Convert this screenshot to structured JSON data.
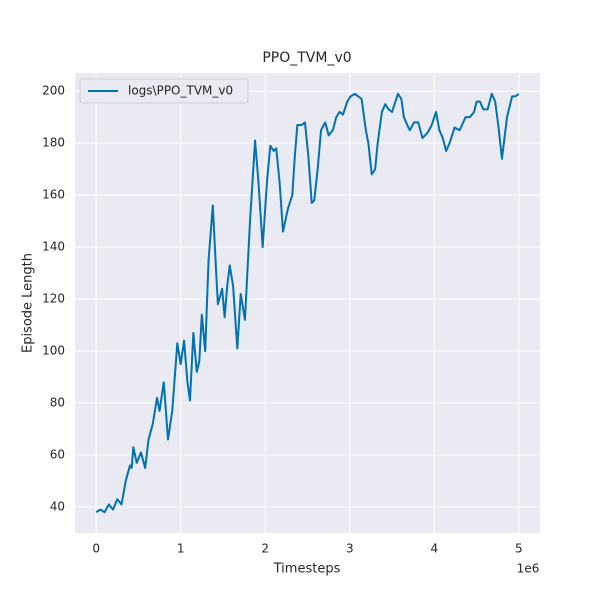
{
  "chart_data": {
    "type": "line",
    "title": "PPO_TVM_v0",
    "x_label": "Timesteps",
    "y_label": "Episode Length",
    "x_offset_label": "1e6",
    "xlim": [
      -0.25,
      5.25
    ],
    "xticks": [
      0,
      1,
      2,
      3,
      4,
      5
    ],
    "ylim": [
      30,
      207
    ],
    "yticks": [
      40,
      60,
      80,
      100,
      120,
      140,
      160,
      180,
      200
    ],
    "grid": true,
    "legend": "upper left",
    "x": [
      0,
      0.05,
      0.1,
      0.15,
      0.2,
      0.25,
      0.3,
      0.35,
      0.4,
      0.42,
      0.44,
      0.48,
      0.53,
      0.58,
      0.62,
      0.67,
      0.72,
      0.75,
      0.8,
      0.85,
      0.9,
      0.96,
      1.0,
      1.04,
      1.08,
      1.11,
      1.15,
      1.19,
      1.22,
      1.25,
      1.29,
      1.33,
      1.38,
      1.42,
      1.44,
      1.49,
      1.52,
      1.55,
      1.58,
      1.62,
      1.67,
      1.71,
      1.76,
      1.82,
      1.88,
      1.92,
      1.97,
      2.02,
      2.06,
      2.1,
      2.13,
      2.17,
      2.21,
      2.27,
      2.32,
      2.35,
      2.38,
      2.43,
      2.47,
      2.51,
      2.55,
      2.58,
      2.62,
      2.66,
      2.71,
      2.75,
      2.8,
      2.84,
      2.88,
      2.92,
      2.97,
      3.01,
      3.06,
      3.14,
      3.19,
      3.22,
      3.26,
      3.3,
      3.33,
      3.38,
      3.42,
      3.46,
      3.5,
      3.57,
      3.61,
      3.64,
      3.68,
      3.71,
      3.76,
      3.81,
      3.86,
      3.92,
      3.97,
      4.02,
      4.06,
      4.1,
      4.14,
      4.18,
      4.24,
      4.3,
      4.37,
      4.42,
      4.47,
      4.5,
      4.54,
      4.58,
      4.63,
      4.68,
      4.72,
      4.76,
      4.8,
      4.86,
      4.92,
      4.96,
      5.0
    ],
    "series": [
      {
        "name": "logs\\PPO_TVM_v0",
        "color": "#0072b2",
        "values": [
          38,
          39,
          38,
          41,
          39,
          43,
          41,
          50,
          56,
          55,
          63,
          57,
          61,
          55,
          66,
          72,
          82,
          77,
          88,
          66,
          77,
          103,
          95,
          104,
          88,
          81,
          107,
          92,
          96,
          114,
          100,
          135,
          156,
          130,
          118,
          124,
          113,
          125,
          133,
          125,
          101,
          122,
          112,
          150,
          181,
          165,
          140,
          165,
          179,
          177,
          178,
          165,
          146,
          155,
          160,
          175,
          187,
          187,
          188,
          175,
          157,
          158,
          170,
          185,
          188,
          183,
          185,
          190,
          192,
          191,
          196,
          198,
          199,
          197,
          185,
          180,
          168,
          170,
          180,
          192,
          195,
          193,
          192,
          199,
          197,
          190,
          187,
          185,
          188,
          188,
          182,
          184,
          187,
          192,
          185,
          182,
          177,
          180,
          186,
          185,
          190,
          190,
          192,
          196,
          196,
          193,
          193,
          199,
          196,
          186,
          174,
          190,
          198,
          198,
          199
        ]
      }
    ]
  }
}
